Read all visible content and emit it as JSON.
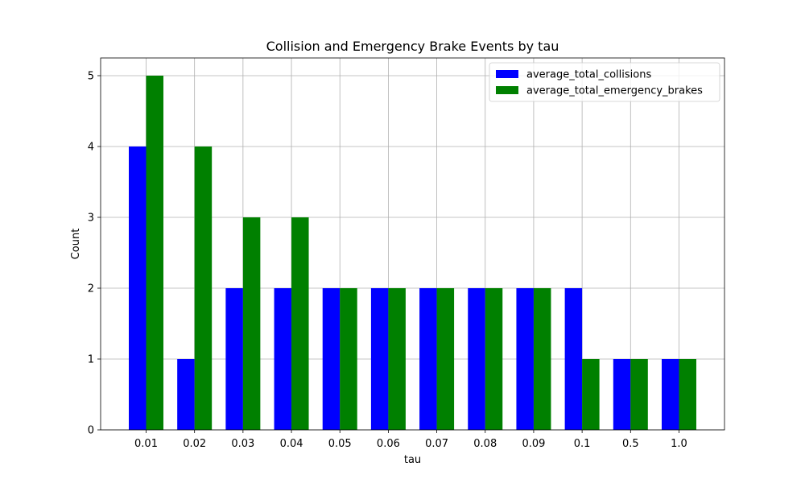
{
  "chart_data": {
    "type": "bar",
    "title": "Collision and Emergency Brake Events by tau",
    "xlabel": "tau",
    "ylabel": "Count",
    "categories": [
      "0.01",
      "0.02",
      "0.03",
      "0.04",
      "0.05",
      "0.06",
      "0.07",
      "0.08",
      "0.09",
      "0.1",
      "0.5",
      "1.0"
    ],
    "series": [
      {
        "name": "average_total_collisions",
        "color": "#0000ff",
        "values": [
          4,
          1,
          2,
          2,
          2,
          2,
          2,
          2,
          2,
          2,
          1,
          1
        ]
      },
      {
        "name": "average_total_emergency_brakes",
        "color": "#008000",
        "values": [
          5,
          4,
          3,
          3,
          2,
          2,
          2,
          2,
          2,
          1,
          1,
          1
        ]
      }
    ],
    "ylim": [
      0,
      5.25
    ],
    "yticks": [
      "0",
      "1",
      "2",
      "3",
      "4",
      "5"
    ],
    "grid": true,
    "legend_position": "top-right"
  }
}
